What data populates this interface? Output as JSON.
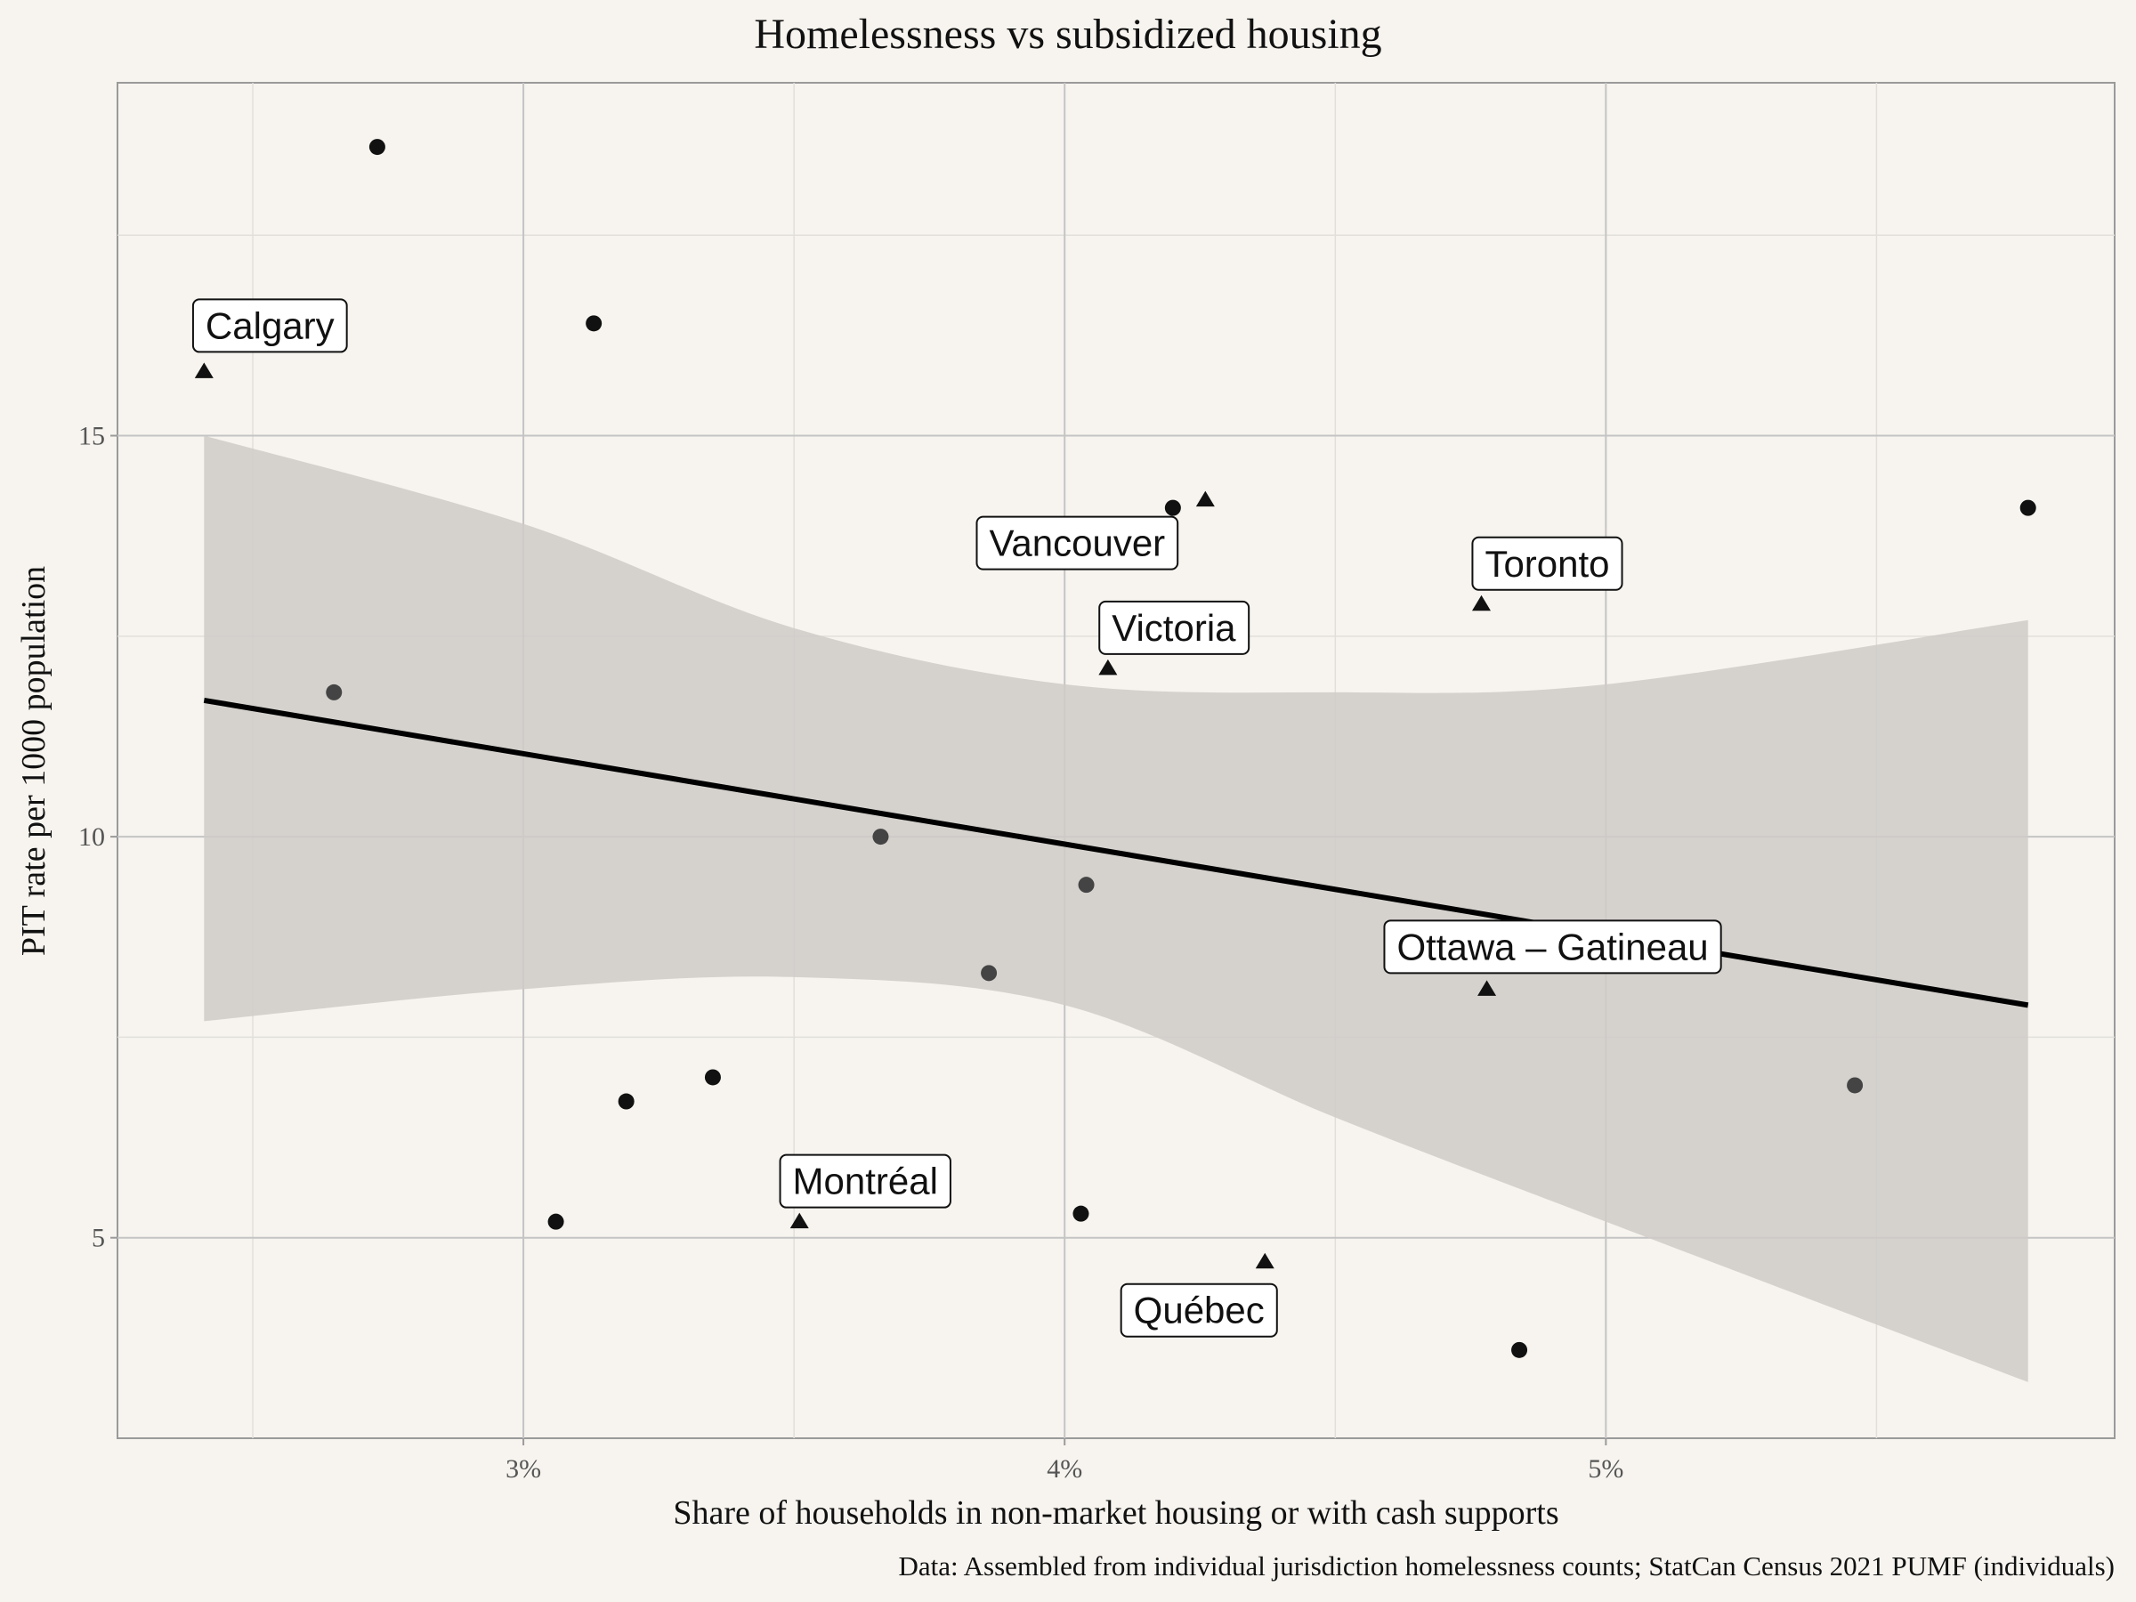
{
  "chart_data": {
    "type": "scatter",
    "title": "Homelessness vs subsidized housing",
    "xlabel": "Share of households in non-market housing or with cash supports",
    "ylabel": "PIT rate per 1000 population",
    "caption": "Data: Assembled from individual jurisdiction homelessness counts; StatCan Census 2021 PUMF (individuals)",
    "xlim": [
      2.25,
      5.94
    ],
    "ylim": [
      2.5,
      19.4
    ],
    "x_ticks": [
      3,
      4,
      5
    ],
    "x_tick_labels": [
      "3%",
      "4%",
      "5%"
    ],
    "y_ticks": [
      5,
      10,
      15
    ],
    "y_tick_labels": [
      "5",
      "10",
      "15"
    ],
    "grid": true,
    "legend": "none",
    "series": [
      {
        "marker": "circle",
        "color": "#111111",
        "points": [
          {
            "x": 2.73,
            "y": 18.6
          },
          {
            "x": 3.13,
            "y": 16.4
          },
          {
            "x": 4.2,
            "y": 14.1
          },
          {
            "x": 5.78,
            "y": 14.1
          },
          {
            "x": 3.35,
            "y": 7.0
          },
          {
            "x": 3.19,
            "y": 6.7
          },
          {
            "x": 3.06,
            "y": 5.2
          },
          {
            "x": 4.03,
            "y": 5.3
          },
          {
            "x": 4.84,
            "y": 3.6
          }
        ]
      },
      {
        "marker": "circle",
        "color": "#444444",
        "points": [
          {
            "x": 2.65,
            "y": 11.8
          },
          {
            "x": 3.66,
            "y": 10.0
          },
          {
            "x": 4.04,
            "y": 9.4
          },
          {
            "x": 3.86,
            "y": 8.3
          },
          {
            "x": 5.46,
            "y": 6.9
          }
        ]
      },
      {
        "marker": "triangle",
        "color": "#111111",
        "points": [
          {
            "x": 2.41,
            "y": 15.8,
            "label": "Calgary"
          },
          {
            "x": 4.26,
            "y": 14.2,
            "label": "Vancouver"
          },
          {
            "x": 4.77,
            "y": 12.9,
            "label": "Toronto"
          },
          {
            "x": 4.08,
            "y": 12.1,
            "label": "Victoria"
          },
          {
            "x": 4.78,
            "y": 8.1,
            "label": "Ottawa – Gatineau"
          },
          {
            "x": 3.51,
            "y": 5.2,
            "label": "Montréal"
          },
          {
            "x": 4.37,
            "y": 4.7,
            "label": "Québec"
          }
        ]
      }
    ],
    "trend_line": {
      "x": [
        2.41,
        5.78
      ],
      "y": [
        11.7,
        7.9
      ]
    },
    "confidence_band": {
      "x": [
        2.41,
        3.0,
        3.5,
        4.0,
        4.5,
        5.0,
        5.78
      ],
      "upper": [
        15.0,
        13.9,
        12.6,
        11.9,
        11.8,
        11.9,
        12.7
      ],
      "lower": [
        7.7,
        8.1,
        8.25,
        7.9,
        6.5,
        5.2,
        3.2
      ]
    }
  }
}
